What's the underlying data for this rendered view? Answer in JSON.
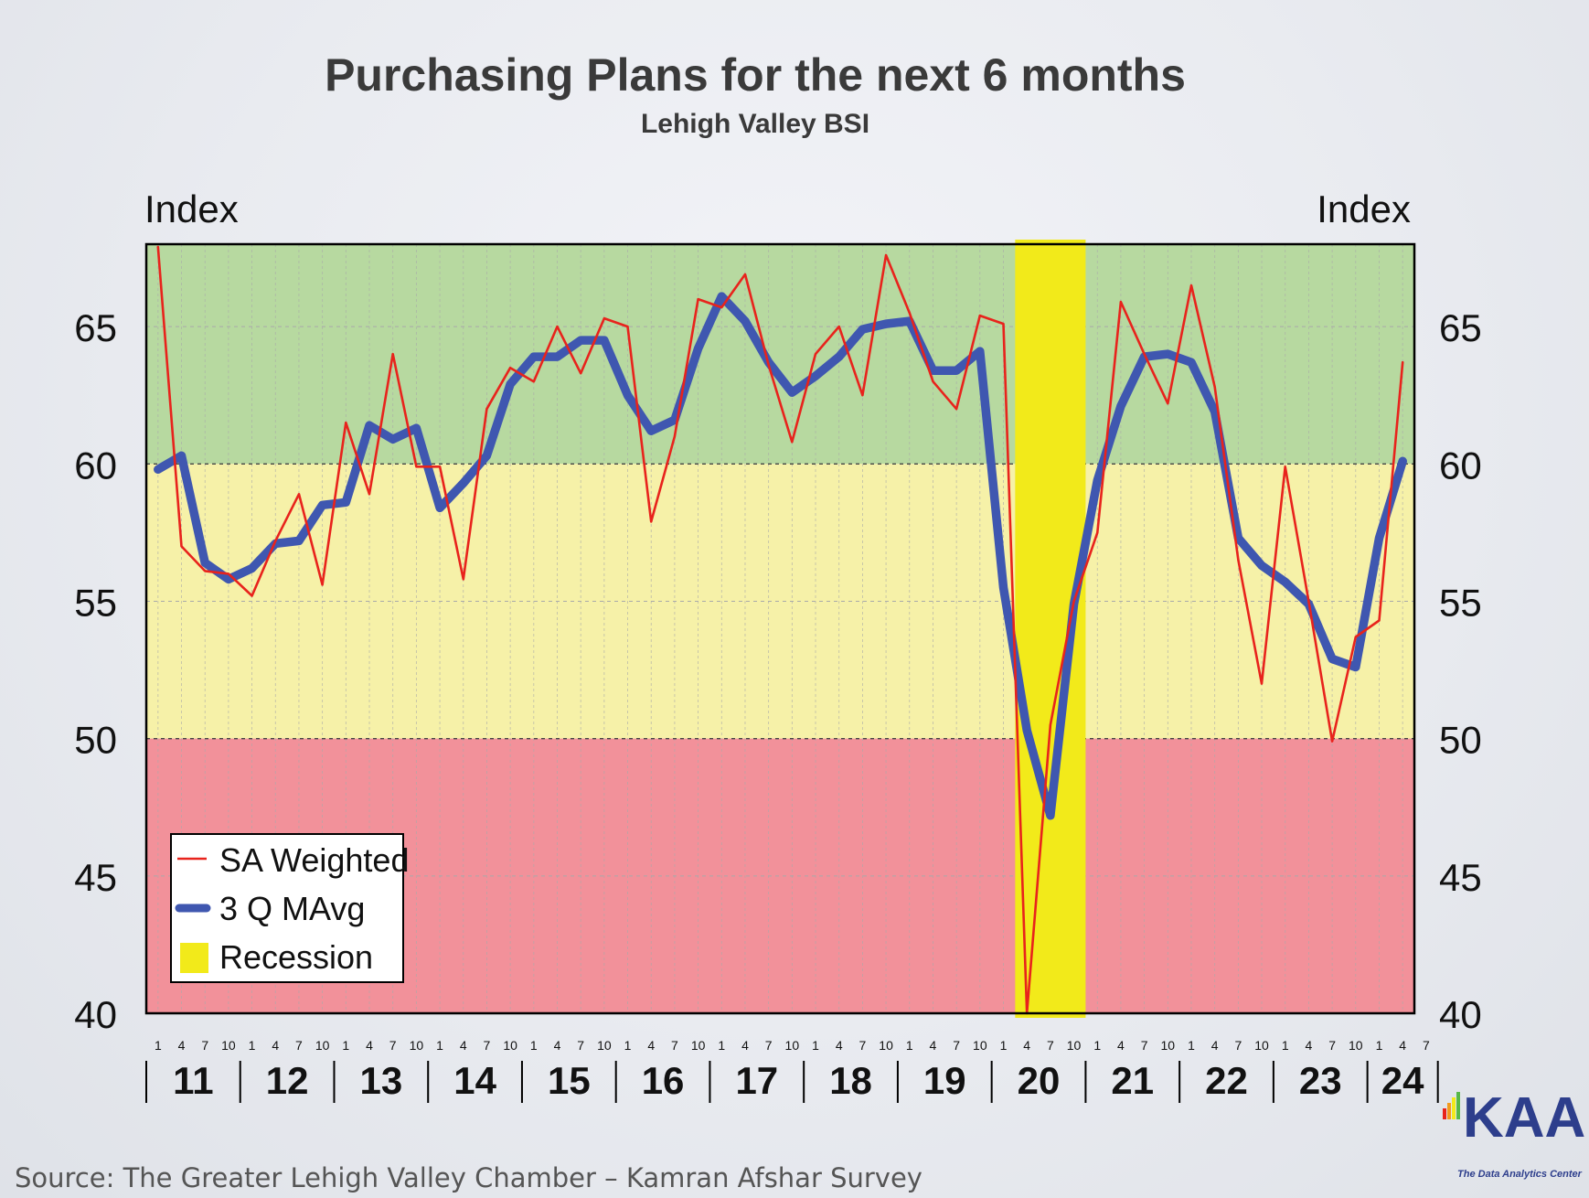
{
  "chart_data": {
    "type": "line",
    "title": "Purchasing Plans for the next 6 months",
    "subtitle": "Lehigh Valley BSI",
    "ylabel_left": "Index",
    "ylabel_right": "Index",
    "ylim": [
      40,
      68
    ],
    "yticks": [
      40,
      45,
      50,
      55,
      60,
      65
    ],
    "zones": [
      {
        "from": 60,
        "to": 68,
        "color": "#b7d9a0"
      },
      {
        "from": 50,
        "to": 60,
        "color": "#f6f1a8"
      },
      {
        "from": 40,
        "to": 50,
        "color": "#f2919a"
      }
    ],
    "quarter_ticks": [
      "1",
      "4",
      "7",
      "10"
    ],
    "last_year_quarter_ticks": [
      "1",
      "4",
      "7"
    ],
    "years": [
      "11",
      "12",
      "13",
      "14",
      "15",
      "16",
      "17",
      "18",
      "19",
      "20",
      "21",
      "22",
      "23",
      "24"
    ],
    "recession": {
      "start_index": 37,
      "end_index": 39,
      "color": "#f2ea1a"
    },
    "series": [
      {
        "name": "SA Weighted",
        "color": "#e8231c",
        "values": [
          67.9,
          57.0,
          56.1,
          56.0,
          55.2,
          57.2,
          58.9,
          55.6,
          61.5,
          58.9,
          64.0,
          59.9,
          59.9,
          55.8,
          62.0,
          63.5,
          63.0,
          65.0,
          63.3,
          65.3,
          65.0,
          57.9,
          61.0,
          66.0,
          65.7,
          66.9,
          63.6,
          60.8,
          64.0,
          65.0,
          62.5,
          67.6,
          65.5,
          63.0,
          62.0,
          65.4,
          65.1,
          40.0,
          50.5,
          55.0,
          57.5,
          65.9,
          64.0,
          62.2,
          66.5,
          62.8,
          56.5,
          52.0,
          59.9,
          55.0,
          49.9,
          53.7,
          54.3,
          63.7
        ]
      },
      {
        "name": "3 Q MAvg",
        "color": "#3f57b0",
        "values": [
          59.8,
          60.3,
          56.4,
          55.8,
          56.2,
          57.1,
          57.2,
          58.5,
          58.6,
          61.4,
          60.9,
          61.3,
          58.4,
          59.3,
          60.3,
          62.9,
          63.9,
          63.9,
          64.5,
          64.5,
          62.5,
          61.2,
          61.6,
          64.2,
          66.1,
          65.2,
          63.7,
          62.6,
          63.2,
          63.9,
          64.9,
          65.1,
          65.2,
          63.4,
          63.4,
          64.1,
          55.5,
          50.3,
          47.2,
          54.9,
          59.4,
          62.1,
          63.9,
          64.0,
          63.7,
          61.9,
          57.3,
          56.3,
          55.7,
          54.9,
          52.9,
          52.6,
          57.3,
          60.1
        ]
      }
    ],
    "legend": {
      "position": "bottom-left",
      "entries": [
        "SA Weighted",
        "3 Q MAvg",
        "Recession"
      ]
    }
  },
  "source": "Source: The Greater Lehigh Valley Chamber – Kamran Afshar Survey",
  "logo": {
    "text": "KAA",
    "tagline": "The Data Analytics Center"
  }
}
